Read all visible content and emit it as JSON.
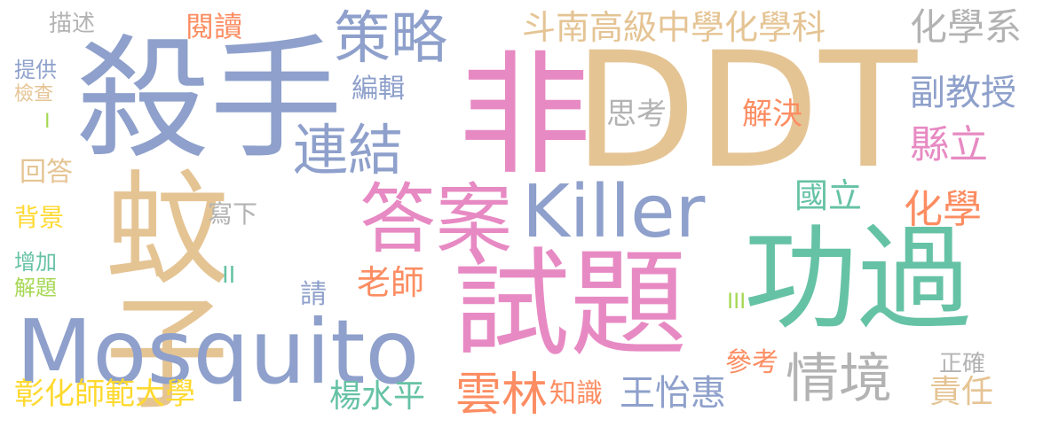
{
  "word_cloud": {
    "palette": {
      "blue": "#8ea0cb",
      "pink": "#e78ac3",
      "tan": "#e5c494",
      "green": "#66c2a5",
      "orange": "#fc8d62",
      "gray": "#b3b3b3",
      "lime": "#a6d854",
      "yellow": "#ffd92f"
    },
    "words": [
      {
        "text": "殺手",
        "color_key": "blue"
      },
      {
        "text": "非",
        "color_key": "pink"
      },
      {
        "text": "DDT",
        "color_key": "tan"
      },
      {
        "text": "蚊子",
        "color_key": "tan"
      },
      {
        "text": "試題",
        "color_key": "pink"
      },
      {
        "text": "功過",
        "color_key": "green"
      },
      {
        "text": "Mosquito",
        "color_key": "blue"
      },
      {
        "text": "Killer",
        "color_key": "blue"
      },
      {
        "text": "答案",
        "color_key": "pink"
      },
      {
        "text": "策略",
        "color_key": "blue"
      },
      {
        "text": "連結",
        "color_key": "blue"
      },
      {
        "text": "情境",
        "color_key": "gray"
      },
      {
        "text": "雲林",
        "color_key": "orange"
      },
      {
        "text": "斗南高級中學化學科",
        "color_key": "tan"
      },
      {
        "text": "化學系",
        "color_key": "gray"
      },
      {
        "text": "副教授",
        "color_key": "blue"
      },
      {
        "text": "縣立",
        "color_key": "pink"
      },
      {
        "text": "化學",
        "color_key": "orange"
      },
      {
        "text": "國立",
        "color_key": "green"
      },
      {
        "text": "解決",
        "color_key": "orange"
      },
      {
        "text": "思考",
        "color_key": "gray"
      },
      {
        "text": "編輯",
        "color_key": "blue"
      },
      {
        "text": "閱讀",
        "color_key": "orange"
      },
      {
        "text": "描述",
        "color_key": "gray"
      },
      {
        "text": "提供",
        "color_key": "blue"
      },
      {
        "text": "檢查",
        "color_key": "tan"
      },
      {
        "text": "I",
        "color_key": "lime"
      },
      {
        "text": "回答",
        "color_key": "tan"
      },
      {
        "text": "背景",
        "color_key": "yellow"
      },
      {
        "text": "增加",
        "color_key": "green"
      },
      {
        "text": "解題",
        "color_key": "lime"
      },
      {
        "text": "寫下",
        "color_key": "gray"
      },
      {
        "text": "II",
        "color_key": "green"
      },
      {
        "text": "老師",
        "color_key": "orange"
      },
      {
        "text": "請",
        "color_key": "blue"
      },
      {
        "text": "III",
        "color_key": "lime"
      },
      {
        "text": "參考",
        "color_key": "orange"
      },
      {
        "text": "正確",
        "color_key": "gray"
      },
      {
        "text": "責任",
        "color_key": "tan"
      },
      {
        "text": "彰化師範大學",
        "color_key": "yellow"
      },
      {
        "text": "楊水平",
        "color_key": "green"
      },
      {
        "text": "知識",
        "color_key": "orange"
      },
      {
        "text": "王怡惠",
        "color_key": "blue"
      }
    ]
  }
}
